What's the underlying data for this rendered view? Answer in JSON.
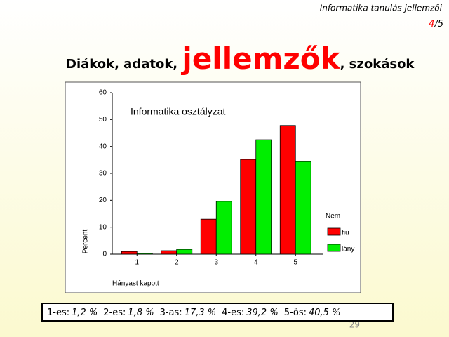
{
  "slide": {
    "header": "Informatika tanulás jellemzői",
    "page": [
      "4",
      "/5"
    ],
    "title_parts": [
      "Diákok, adatok, ",
      "jellemzők",
      ", szokások"
    ],
    "footer_items": [
      {
        "label": "1-es:",
        "value": "1,2 %"
      },
      {
        "label": "2-es:",
        "value": "1,8 %"
      },
      {
        "label": "3-as:",
        "value": "17,3 %"
      },
      {
        "label": "4-es:",
        "value": "39,2 %"
      },
      {
        "label": "5-ös:",
        "value": "40,5 %"
      }
    ],
    "slide_number": "29"
  },
  "chart_data": {
    "type": "bar",
    "title": "Informatika osztályzat",
    "x_label": "Hányast kapott",
    "y_label": "Percent",
    "legend_title": "Nem",
    "categories": [
      "1",
      "2",
      "3",
      "4",
      "5"
    ],
    "series": [
      {
        "name": "fiú",
        "color": "#ff0000",
        "values": [
          1.0,
          1.3,
          13.0,
          35.2,
          47.8
        ]
      },
      {
        "name": "lány",
        "color": "#00ee00",
        "values": [
          0.3,
          1.8,
          19.6,
          42.5,
          34.4
        ]
      }
    ],
    "ylim": [
      0,
      60
    ],
    "yticks": [
      0,
      10,
      20,
      30,
      40,
      50,
      60
    ]
  }
}
